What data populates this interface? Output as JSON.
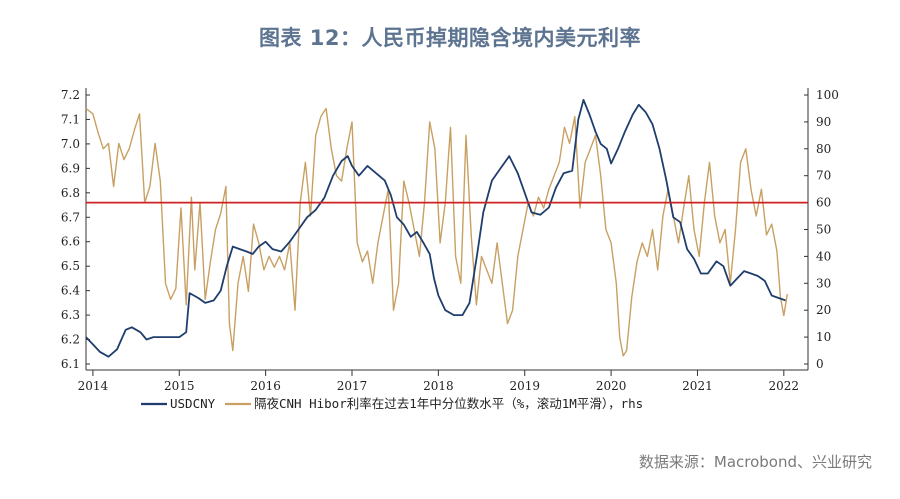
{
  "title": "图表 12：人民币掉期隐含境内美元利率",
  "source": "数据来源：Macrobond、兴业研究",
  "chart_data": {
    "type": "line",
    "x_ticks": [
      "2014",
      "2015",
      "2016",
      "2017",
      "2018",
      "2019",
      "2020",
      "2021",
      "2022"
    ],
    "left_axis": {
      "ylim": [
        6.1,
        7.2
      ],
      "ticks": [
        "6.1",
        "6.2",
        "6.3",
        "6.4",
        "6.5",
        "6.6",
        "6.7",
        "6.8",
        "6.9",
        "7.0",
        "7.1",
        "7.2"
      ]
    },
    "right_axis": {
      "ylim": [
        0,
        100
      ],
      "ticks": [
        "0",
        "10",
        "20",
        "30",
        "40",
        "50",
        "60",
        "70",
        "80",
        "90",
        "100"
      ]
    },
    "reference_line": {
      "axis": "right",
      "value": 60,
      "color": "#cc2222"
    },
    "series": [
      {
        "name": "USDCNY",
        "axis": "left",
        "color": "#1f3e6e",
        "points": [
          [
            2013.92,
            6.21
          ],
          [
            2014.0,
            6.18
          ],
          [
            2014.08,
            6.15
          ],
          [
            2014.18,
            6.13
          ],
          [
            2014.28,
            6.16
          ],
          [
            2014.38,
            6.24
          ],
          [
            2014.45,
            6.25
          ],
          [
            2014.55,
            6.23
          ],
          [
            2014.62,
            6.2
          ],
          [
            2014.7,
            6.21
          ],
          [
            2014.8,
            6.21
          ],
          [
            2014.9,
            6.21
          ],
          [
            2015.0,
            6.21
          ],
          [
            2015.08,
            6.23
          ],
          [
            2015.12,
            6.39
          ],
          [
            2015.22,
            6.37
          ],
          [
            2015.3,
            6.35
          ],
          [
            2015.4,
            6.36
          ],
          [
            2015.48,
            6.4
          ],
          [
            2015.55,
            6.5
          ],
          [
            2015.62,
            6.58
          ],
          [
            2015.7,
            6.57
          ],
          [
            2015.78,
            6.56
          ],
          [
            2015.85,
            6.55
          ],
          [
            2015.92,
            6.58
          ],
          [
            2016.0,
            6.6
          ],
          [
            2016.08,
            6.57
          ],
          [
            2016.18,
            6.56
          ],
          [
            2016.28,
            6.6
          ],
          [
            2016.38,
            6.65
          ],
          [
            2016.48,
            6.7
          ],
          [
            2016.58,
            6.73
          ],
          [
            2016.68,
            6.78
          ],
          [
            2016.78,
            6.87
          ],
          [
            2016.88,
            6.93
          ],
          [
            2016.95,
            6.95
          ],
          [
            2017.0,
            6.91
          ],
          [
            2017.08,
            6.87
          ],
          [
            2017.18,
            6.91
          ],
          [
            2017.28,
            6.88
          ],
          [
            2017.38,
            6.85
          ],
          [
            2017.45,
            6.79
          ],
          [
            2017.52,
            6.7
          ],
          [
            2017.6,
            6.67
          ],
          [
            2017.68,
            6.62
          ],
          [
            2017.75,
            6.64
          ],
          [
            2017.82,
            6.6
          ],
          [
            2017.9,
            6.55
          ],
          [
            2017.95,
            6.45
          ],
          [
            2018.0,
            6.38
          ],
          [
            2018.08,
            6.32
          ],
          [
            2018.18,
            6.3
          ],
          [
            2018.28,
            6.3
          ],
          [
            2018.36,
            6.35
          ],
          [
            2018.45,
            6.55
          ],
          [
            2018.52,
            6.72
          ],
          [
            2018.62,
            6.85
          ],
          [
            2018.72,
            6.9
          ],
          [
            2018.82,
            6.95
          ],
          [
            2018.92,
            6.88
          ],
          [
            2019.0,
            6.8
          ],
          [
            2019.08,
            6.72
          ],
          [
            2019.18,
            6.71
          ],
          [
            2019.28,
            6.74
          ],
          [
            2019.36,
            6.82
          ],
          [
            2019.45,
            6.88
          ],
          [
            2019.55,
            6.89
          ],
          [
            2019.62,
            7.1
          ],
          [
            2019.68,
            7.18
          ],
          [
            2019.75,
            7.12
          ],
          [
            2019.82,
            7.05
          ],
          [
            2019.88,
            7.0
          ],
          [
            2019.95,
            6.98
          ],
          [
            2020.0,
            6.92
          ],
          [
            2020.08,
            6.98
          ],
          [
            2020.16,
            7.05
          ],
          [
            2020.25,
            7.12
          ],
          [
            2020.32,
            7.16
          ],
          [
            2020.4,
            7.13
          ],
          [
            2020.48,
            7.08
          ],
          [
            2020.56,
            6.98
          ],
          [
            2020.64,
            6.85
          ],
          [
            2020.72,
            6.7
          ],
          [
            2020.8,
            6.68
          ],
          [
            2020.88,
            6.57
          ],
          [
            2020.96,
            6.53
          ],
          [
            2021.04,
            6.47
          ],
          [
            2021.12,
            6.47
          ],
          [
            2021.22,
            6.52
          ],
          [
            2021.3,
            6.5
          ],
          [
            2021.38,
            6.42
          ],
          [
            2021.46,
            6.45
          ],
          [
            2021.54,
            6.48
          ],
          [
            2021.62,
            6.47
          ],
          [
            2021.7,
            6.46
          ],
          [
            2021.78,
            6.44
          ],
          [
            2021.86,
            6.38
          ],
          [
            2021.94,
            6.37
          ],
          [
            2022.02,
            6.36
          ]
        ]
      },
      {
        "name": "隔夜CNH Hibor利率在过去1年中分位数水平（%，滚动1M平滑），rhs",
        "axis": "right",
        "color": "#c8a063",
        "points": [
          [
            2013.92,
            95
          ],
          [
            2014.0,
            93
          ],
          [
            2014.06,
            86
          ],
          [
            2014.12,
            80
          ],
          [
            2014.18,
            82
          ],
          [
            2014.24,
            66
          ],
          [
            2014.3,
            82
          ],
          [
            2014.36,
            76
          ],
          [
            2014.42,
            80
          ],
          [
            2014.48,
            87
          ],
          [
            2014.54,
            93
          ],
          [
            2014.6,
            60
          ],
          [
            2014.66,
            66
          ],
          [
            2014.72,
            82
          ],
          [
            2014.78,
            68
          ],
          [
            2014.84,
            30
          ],
          [
            2014.9,
            24
          ],
          [
            2014.96,
            28
          ],
          [
            2015.02,
            58
          ],
          [
            2015.08,
            22
          ],
          [
            2015.14,
            62
          ],
          [
            2015.18,
            35
          ],
          [
            2015.24,
            60
          ],
          [
            2015.3,
            24
          ],
          [
            2015.36,
            38
          ],
          [
            2015.42,
            50
          ],
          [
            2015.48,
            56
          ],
          [
            2015.54,
            66
          ],
          [
            2015.58,
            15
          ],
          [
            2015.62,
            5
          ],
          [
            2015.68,
            30
          ],
          [
            2015.74,
            40
          ],
          [
            2015.8,
            27
          ],
          [
            2015.86,
            52
          ],
          [
            2015.92,
            45
          ],
          [
            2015.98,
            35
          ],
          [
            2016.04,
            40
          ],
          [
            2016.1,
            36
          ],
          [
            2016.16,
            40
          ],
          [
            2016.22,
            35
          ],
          [
            2016.28,
            45
          ],
          [
            2016.34,
            20
          ],
          [
            2016.4,
            60
          ],
          [
            2016.46,
            75
          ],
          [
            2016.52,
            55
          ],
          [
            2016.58,
            85
          ],
          [
            2016.64,
            92
          ],
          [
            2016.7,
            95
          ],
          [
            2016.76,
            80
          ],
          [
            2016.82,
            70
          ],
          [
            2016.88,
            68
          ],
          [
            2016.94,
            80
          ],
          [
            2017.0,
            90
          ],
          [
            2017.06,
            45
          ],
          [
            2017.12,
            38
          ],
          [
            2017.18,
            42
          ],
          [
            2017.24,
            30
          ],
          [
            2017.3,
            45
          ],
          [
            2017.36,
            55
          ],
          [
            2017.42,
            65
          ],
          [
            2017.48,
            20
          ],
          [
            2017.54,
            30
          ],
          [
            2017.6,
            68
          ],
          [
            2017.66,
            60
          ],
          [
            2017.72,
            50
          ],
          [
            2017.78,
            40
          ],
          [
            2017.84,
            60
          ],
          [
            2017.9,
            90
          ],
          [
            2017.96,
            80
          ],
          [
            2018.02,
            45
          ],
          [
            2018.08,
            60
          ],
          [
            2018.14,
            88
          ],
          [
            2018.2,
            40
          ],
          [
            2018.26,
            30
          ],
          [
            2018.32,
            85
          ],
          [
            2018.38,
            48
          ],
          [
            2018.44,
            22
          ],
          [
            2018.5,
            40
          ],
          [
            2018.56,
            35
          ],
          [
            2018.62,
            30
          ],
          [
            2018.68,
            45
          ],
          [
            2018.74,
            30
          ],
          [
            2018.8,
            15
          ],
          [
            2018.86,
            20
          ],
          [
            2018.92,
            40
          ],
          [
            2018.98,
            50
          ],
          [
            2019.04,
            60
          ],
          [
            2019.1,
            55
          ],
          [
            2019.16,
            62
          ],
          [
            2019.22,
            58
          ],
          [
            2019.28,
            65
          ],
          [
            2019.34,
            70
          ],
          [
            2019.4,
            75
          ],
          [
            2019.46,
            88
          ],
          [
            2019.52,
            82
          ],
          [
            2019.58,
            92
          ],
          [
            2019.64,
            58
          ],
          [
            2019.7,
            75
          ],
          [
            2019.76,
            80
          ],
          [
            2019.82,
            85
          ],
          [
            2019.88,
            70
          ],
          [
            2019.94,
            50
          ],
          [
            2020.0,
            45
          ],
          [
            2020.06,
            30
          ],
          [
            2020.1,
            10
          ],
          [
            2020.14,
            3
          ],
          [
            2020.18,
            5
          ],
          [
            2020.24,
            25
          ],
          [
            2020.3,
            38
          ],
          [
            2020.36,
            45
          ],
          [
            2020.42,
            40
          ],
          [
            2020.48,
            50
          ],
          [
            2020.54,
            35
          ],
          [
            2020.6,
            55
          ],
          [
            2020.66,
            65
          ],
          [
            2020.72,
            55
          ],
          [
            2020.78,
            45
          ],
          [
            2020.84,
            58
          ],
          [
            2020.9,
            70
          ],
          [
            2020.96,
            50
          ],
          [
            2021.02,
            40
          ],
          [
            2021.08,
            60
          ],
          [
            2021.14,
            75
          ],
          [
            2021.2,
            55
          ],
          [
            2021.26,
            45
          ],
          [
            2021.32,
            50
          ],
          [
            2021.38,
            30
          ],
          [
            2021.44,
            50
          ],
          [
            2021.5,
            75
          ],
          [
            2021.56,
            80
          ],
          [
            2021.62,
            65
          ],
          [
            2021.68,
            55
          ],
          [
            2021.74,
            65
          ],
          [
            2021.8,
            48
          ],
          [
            2021.86,
            52
          ],
          [
            2021.92,
            42
          ],
          [
            2021.96,
            25
          ],
          [
            2022.0,
            18
          ],
          [
            2022.04,
            26
          ]
        ]
      }
    ]
  }
}
